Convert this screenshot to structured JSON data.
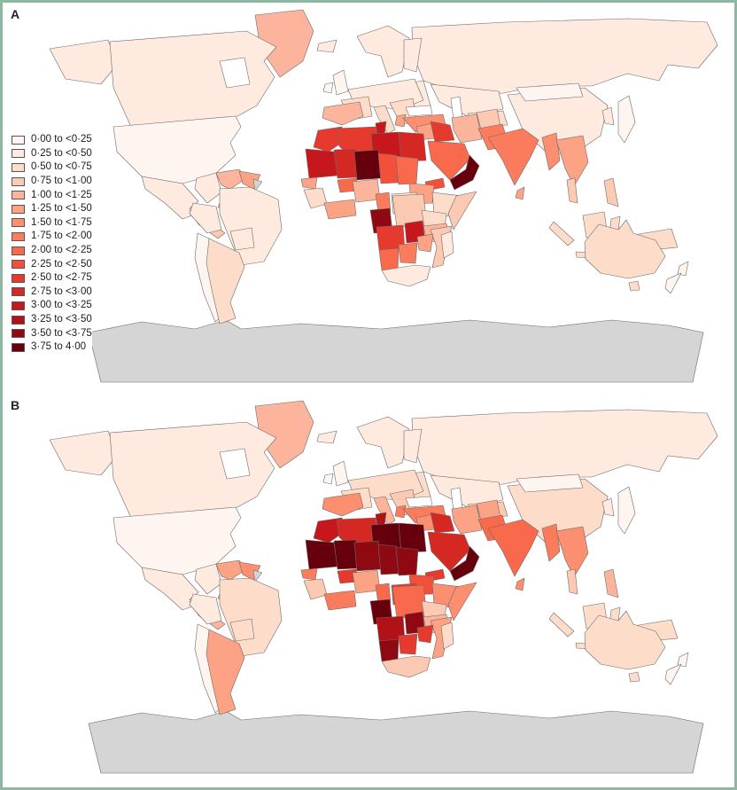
{
  "figure": {
    "panel_a_label": "A",
    "panel_b_label": "B",
    "border_color": "#8fb7a4"
  },
  "legend": {
    "items": [
      {
        "label": "0·00 to <0·25",
        "color": "#fff5f0"
      },
      {
        "label": "0·25 to <0·50",
        "color": "#feeade"
      },
      {
        "label": "0·50 to <0·75",
        "color": "#fddcca"
      },
      {
        "label": "0·75 to <1·00",
        "color": "#fcc9b2"
      },
      {
        "label": "1·00 to <1·25",
        "color": "#fcb59c"
      },
      {
        "label": "1·25 to <1·50",
        "color": "#fca285"
      },
      {
        "label": "1·50 to <1·75",
        "color": "#fc8f6f"
      },
      {
        "label": "1·75 to <2·00",
        "color": "#fb7c5c"
      },
      {
        "label": "2·00 to <2·25",
        "color": "#f9694c"
      },
      {
        "label": "2·25 to <2·50",
        "color": "#f2503b"
      },
      {
        "label": "2·50 to <2·75",
        "color": "#e63a2e"
      },
      {
        "label": "2·75 to <3·00",
        "color": "#d62823"
      },
      {
        "label": "3·00 to <3·25",
        "color": "#c5171c"
      },
      {
        "label": "3·25 to <3·50",
        "color": "#b01217"
      },
      {
        "label": "3·50 to <3·75",
        "color": "#8e0912"
      },
      {
        "label": "3·75 to 4·00",
        "color": "#67000d"
      }
    ]
  },
  "map": {
    "ocean_color": "#ffffff",
    "no_data_color": "#d5d5d5",
    "outline_color": "#6b6b6b",
    "panels": {
      "A": {
        "regions": {
          "antarctica": "#d5d5d5",
          "frguiana": "#d5d5d5",
          "hudsonbay": "#ffffff",
          "blacksea": "#ffffff",
          "caspian": "#ffffff",
          "greenland": "#fcb59c",
          "alaska": "#feeade",
          "canada": "#feeade",
          "usa": "#fff5f0",
          "mexico": "#feeade",
          "centralam": "#fcc9b2",
          "cuba": "#fcc9b2",
          "hispaniola": "#fcc9b2",
          "colombia": "#feeade",
          "venezuela": "#fcb59c",
          "guyanas": "#fca285",
          "peru": "#feeade",
          "brazil": "#feeade",
          "bolivia": "#feeade",
          "chile": "#fff5f0",
          "argentina": "#fddcca",
          "iceland": "#feeade",
          "uk": "#fff5f0",
          "ireland": "#fff5f0",
          "scandinavia": "#feeade",
          "finland": "#feeade",
          "russia": "#feeade",
          "kazakh": "#feeade",
          "centralasia": "#fddcca",
          "easterneurope": "#feeade",
          "europe_main": "#feeade",
          "france": "#fddcca",
          "spain": "#fcb59c",
          "italy": "#fddcca",
          "balkans": "#fddcca",
          "greecealb": "#fca285",
          "turkey": "#fc8f6f",
          "syria": "#fca285",
          "iraq": "#e63a2e",
          "iran": "#fcb59c",
          "afghanistan": "#fcc9b2",
          "china": "#feeade",
          "mongolia": "#fff5f0",
          "korea": "#feeade",
          "japan": "#fff5f0",
          "pakistan": "#fb7c5c",
          "india": "#fb7c5c",
          "srilanka": "#fca285",
          "saudi": "#f9694c",
          "yemenoman": "#67000d",
          "myanmar": "#fc8f6f",
          "thaiviet": "#fca285",
          "malaypen": "#fcc9b2",
          "sumatra": "#fddcca",
          "java": "#fddcca",
          "borneo": "#fddcca",
          "sulawesi": "#fddcca",
          "newguinea": "#fddcca",
          "philippines": "#fcc9b2",
          "australia": "#fddcca",
          "tasmania": "#fddcca",
          "nz_north": "#fff5f0",
          "nz_south": "#fff5f0",
          "morocco": "#e63a2e",
          "algeria": "#e63a2e",
          "tunisia": "#c5171c",
          "libya": "#c5171c",
          "egypt": "#d62823",
          "mauritania": "#c5171c",
          "mali": "#d62823",
          "niger": "#67000d",
          "chad": "#f2503b",
          "sudan": "#f9694c",
          "senegal": "#fca285",
          "guinea_grp": "#fddcca",
          "burkina": "#f9694c",
          "ivorycoast_grp": "#fca285",
          "nigeria": "#fcb59c",
          "cameroon": "#fb7c5c",
          "eritrea": "#f2503b",
          "southsudan": "#fca285",
          "car": "#fddcca",
          "ethiopia": "#fddcca",
          "somalia": "#fcc9b2",
          "drc": "#fcc9b2",
          "kenya_uganda": "#fddcca",
          "gabon_congo": "#8e0912",
          "tanzania": "#fcb59c",
          "angola": "#e63a2e",
          "zambia": "#c5171c",
          "mozambique": "#fcc9b2",
          "zimbabwe": "#fca285",
          "namibia": "#f9694c",
          "botswana": "#fb7c5c",
          "southafrica": "#feeade",
          "madagascar": "#feeade"
        }
      },
      "B": {
        "regions": {
          "antarctica": "#d5d5d5",
          "frguiana": "#d5d5d5",
          "hudsonbay": "#ffffff",
          "blacksea": "#ffffff",
          "caspian": "#ffffff",
          "greenland": "#fcb59c",
          "alaska": "#feeade",
          "canada": "#feeade",
          "usa": "#fff5f0",
          "mexico": "#feeade",
          "centralam": "#fcb59c",
          "cuba": "#fcb59c",
          "hispaniola": "#fcb59c",
          "colombia": "#feeade",
          "venezuela": "#fca285",
          "guyanas": "#fc8f6f",
          "peru": "#feeade",
          "brazil": "#fddcca",
          "bolivia": "#fddcca",
          "chile": "#fff5f0",
          "argentina": "#fca285",
          "iceland": "#feeade",
          "uk": "#fff5f0",
          "ireland": "#fff5f0",
          "scandinavia": "#feeade",
          "finland": "#feeade",
          "russia": "#feeade",
          "kazakh": "#feeade",
          "centralasia": "#fcc9b2",
          "easterneurope": "#fddcca",
          "europe_main": "#fddcca",
          "france": "#fddcca",
          "spain": "#fc8f6f",
          "italy": "#fcb59c",
          "balkans": "#fcc9b2",
          "greecealb": "#fb7c5c",
          "turkey": "#fb7c5c",
          "syria": "#fc8f6f",
          "iraq": "#d62823",
          "iran": "#fca285",
          "afghanistan": "#fca285",
          "china": "#fddcca",
          "mongolia": "#fff5f0",
          "korea": "#feeade",
          "japan": "#fff5f0",
          "pakistan": "#f9694c",
          "india": "#f9694c",
          "srilanka": "#fc8f6f",
          "saudi": "#d62823",
          "yemenoman": "#67000d",
          "myanmar": "#fb7c5c",
          "thaiviet": "#fc8f6f",
          "malaypen": "#fcc9b2",
          "sumatra": "#fddcca",
          "java": "#fddcca",
          "borneo": "#fddcca",
          "sulawesi": "#fddcca",
          "newguinea": "#fddcca",
          "philippines": "#fcb59c",
          "morocco": "#c5171c",
          "algeria": "#d62823",
          "tunisia": "#b01217",
          "libya": "#67000d",
          "egypt": "#67000d",
          "mauritania": "#67000d",
          "mali": "#67000d",
          "niger": "#8e0912",
          "chad": "#8e0912",
          "sudan": "#8e0912",
          "senegal": "#fb7c5c",
          "guinea_grp": "#fcc9b2",
          "burkina": "#e63a2e",
          "ivorycoast_grp": "#fb7c5c",
          "nigeria": "#fca285",
          "cameroon": "#f9694c",
          "eritrea": "#e63a2e",
          "southsudan": "#f2503b",
          "car": "#e63a2e",
          "ethiopia": "#fc8f6f",
          "somalia": "#fc8f6f",
          "drc": "#f9694c",
          "kenya_uganda": "#fcc9b2",
          "gabon_congo": "#67000d",
          "tanzania": "#fcb59c",
          "angola": "#b01217",
          "zambia": "#8e0912",
          "mozambique": "#fca285",
          "zimbabwe": "#e63a2e",
          "namibia": "#8e0912",
          "botswana": "#e63a2e",
          "southafrica": "#fcc9b2",
          "madagascar": "#fddcca",
          "australia": "#fddcca",
          "tasmania": "#fddcca",
          "nz_north": "#fff5f0",
          "nz_south": "#fff5f0"
        }
      }
    }
  }
}
